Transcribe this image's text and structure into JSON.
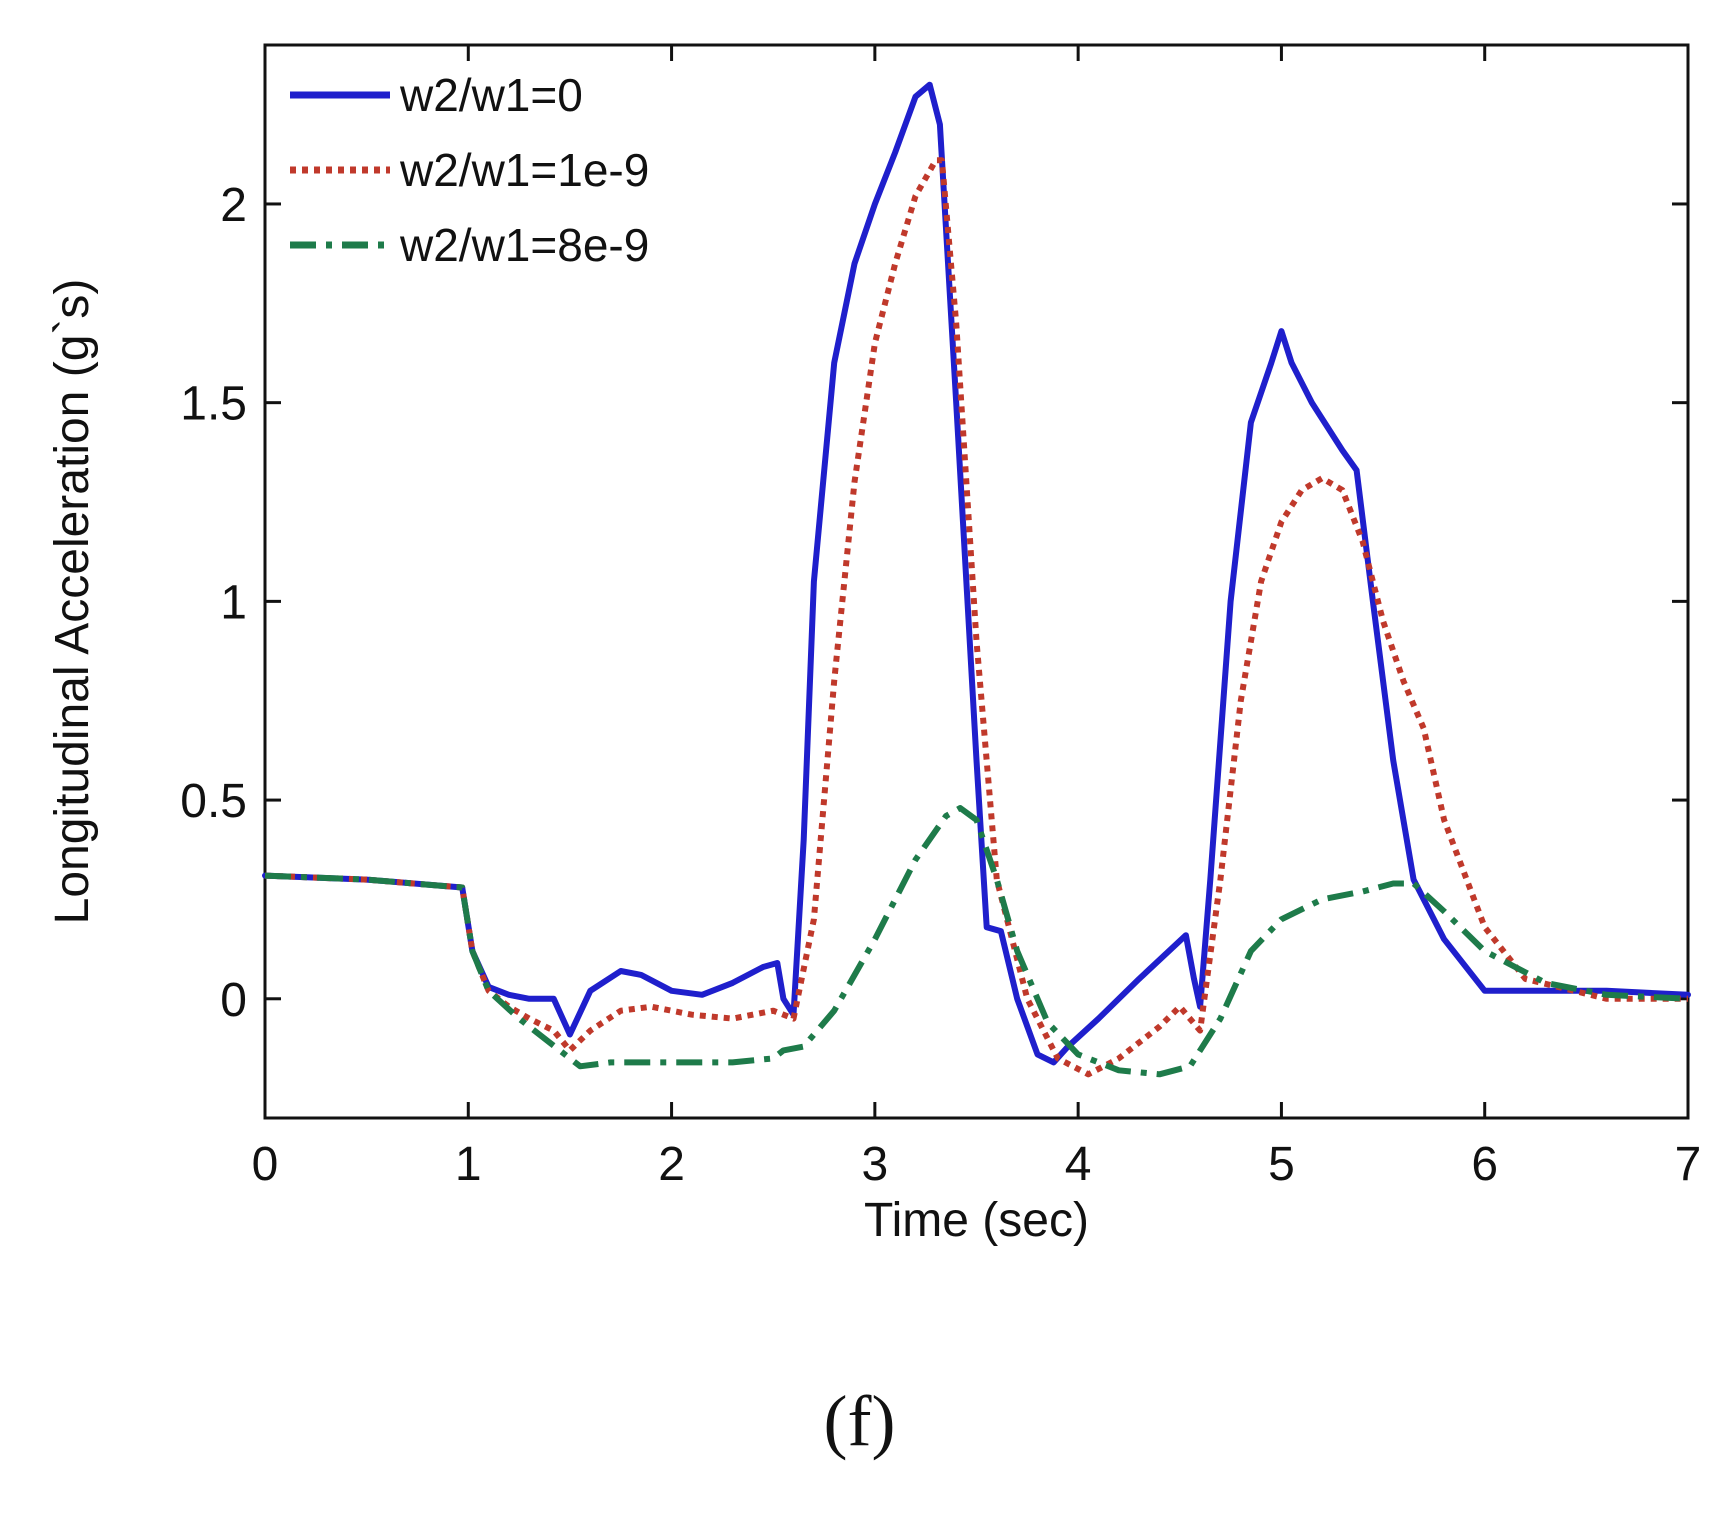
{
  "caption": "(f)",
  "chart_data": {
    "type": "line",
    "title": "",
    "xlabel": "Time (sec)",
    "ylabel": "Longitudinal Acceleration (g`s)",
    "xlim": [
      0,
      7
    ],
    "ylim": [
      -0.3,
      2.4
    ],
    "xticks": [
      0,
      1,
      2,
      3,
      4,
      5,
      6,
      7
    ],
    "xtick_labels": [
      "0",
      "1",
      "2",
      "3",
      "4",
      "5",
      "6",
      "7"
    ],
    "yticks": [
      0,
      0.5,
      1,
      1.5,
      2
    ],
    "ytick_labels": [
      "0",
      "0.5",
      "1",
      "1.5",
      "2"
    ],
    "grid": false,
    "legend_position": "top-left",
    "series": [
      {
        "name": "w2/w1=0",
        "color": "#1f1fcc",
        "style": "solid",
        "x": [
          0,
          0.5,
          0.97,
          1.02,
          1.1,
          1.2,
          1.3,
          1.42,
          1.5,
          1.6,
          1.75,
          1.85,
          2.0,
          2.15,
          2.3,
          2.45,
          2.52,
          2.55,
          2.6,
          2.65,
          2.7,
          2.8,
          2.9,
          3.0,
          3.1,
          3.2,
          3.27,
          3.32,
          3.4,
          3.5,
          3.55,
          3.62,
          3.7,
          3.8,
          3.88,
          3.95,
          4.1,
          4.3,
          4.53,
          4.57,
          4.6,
          4.65,
          4.75,
          4.85,
          4.95,
          5.0,
          5.05,
          5.15,
          5.3,
          5.37,
          5.45,
          5.55,
          5.65,
          5.8,
          6.0,
          6.2,
          6.6,
          7.0
        ],
        "y": [
          0.31,
          0.3,
          0.28,
          0.12,
          0.03,
          0.01,
          0.0,
          0.0,
          -0.09,
          0.02,
          0.07,
          0.06,
          0.02,
          0.01,
          0.04,
          0.08,
          0.09,
          0.0,
          -0.04,
          0.4,
          1.05,
          1.6,
          1.85,
          2.0,
          2.13,
          2.27,
          2.3,
          2.2,
          1.5,
          0.6,
          0.18,
          0.17,
          0.0,
          -0.14,
          -0.16,
          -0.12,
          -0.05,
          0.05,
          0.16,
          0.05,
          -0.02,
          0.3,
          1.0,
          1.45,
          1.6,
          1.68,
          1.6,
          1.5,
          1.38,
          1.33,
          1.0,
          0.6,
          0.3,
          0.15,
          0.02,
          0.02,
          0.02,
          0.01
        ]
      },
      {
        "name": "w2/w1=1e-9",
        "color": "#c0392b",
        "style": "dotted",
        "x": [
          0,
          0.5,
          0.97,
          1.02,
          1.1,
          1.2,
          1.3,
          1.42,
          1.5,
          1.6,
          1.75,
          1.9,
          2.1,
          2.3,
          2.5,
          2.6,
          2.7,
          2.8,
          2.9,
          3.0,
          3.1,
          3.2,
          3.3,
          3.33,
          3.4,
          3.5,
          3.6,
          3.65,
          3.75,
          3.9,
          4.05,
          4.2,
          4.4,
          4.5,
          4.6,
          4.7,
          4.8,
          4.9,
          5.0,
          5.1,
          5.2,
          5.3,
          5.4,
          5.5,
          5.6,
          5.7,
          5.8,
          6.0,
          6.2,
          6.6,
          7.0
        ],
        "y": [
          0.31,
          0.3,
          0.28,
          0.12,
          0.02,
          -0.02,
          -0.05,
          -0.08,
          -0.13,
          -0.08,
          -0.03,
          -0.02,
          -0.04,
          -0.05,
          -0.03,
          -0.05,
          0.2,
          0.8,
          1.3,
          1.65,
          1.85,
          2.02,
          2.11,
          2.11,
          1.7,
          0.9,
          0.3,
          0.2,
          0.0,
          -0.15,
          -0.19,
          -0.15,
          -0.07,
          -0.02,
          -0.08,
          0.3,
          0.75,
          1.05,
          1.2,
          1.28,
          1.31,
          1.28,
          1.15,
          0.95,
          0.8,
          0.68,
          0.45,
          0.18,
          0.05,
          0.0,
          0.0
        ]
      },
      {
        "name": "w2/w1=8e-9",
        "color": "#1e7b4a",
        "style": "dashdot",
        "x": [
          0,
          0.5,
          0.97,
          1.02,
          1.1,
          1.25,
          1.4,
          1.55,
          1.7,
          2.0,
          2.3,
          2.5,
          2.55,
          2.65,
          2.8,
          3.0,
          3.2,
          3.35,
          3.42,
          3.5,
          3.6,
          3.7,
          3.85,
          4.0,
          4.2,
          4.4,
          4.55,
          4.7,
          4.85,
          5.0,
          5.2,
          5.4,
          5.55,
          5.65,
          5.8,
          6.0,
          6.3,
          6.6,
          7.0
        ],
        "y": [
          0.31,
          0.3,
          0.28,
          0.12,
          0.02,
          -0.05,
          -0.11,
          -0.17,
          -0.16,
          -0.16,
          -0.16,
          -0.15,
          -0.13,
          -0.12,
          -0.03,
          0.15,
          0.35,
          0.46,
          0.48,
          0.45,
          0.3,
          0.12,
          -0.06,
          -0.14,
          -0.18,
          -0.19,
          -0.17,
          -0.05,
          0.12,
          0.2,
          0.25,
          0.27,
          0.29,
          0.29,
          0.22,
          0.12,
          0.04,
          0.01,
          0.0
        ]
      }
    ]
  }
}
